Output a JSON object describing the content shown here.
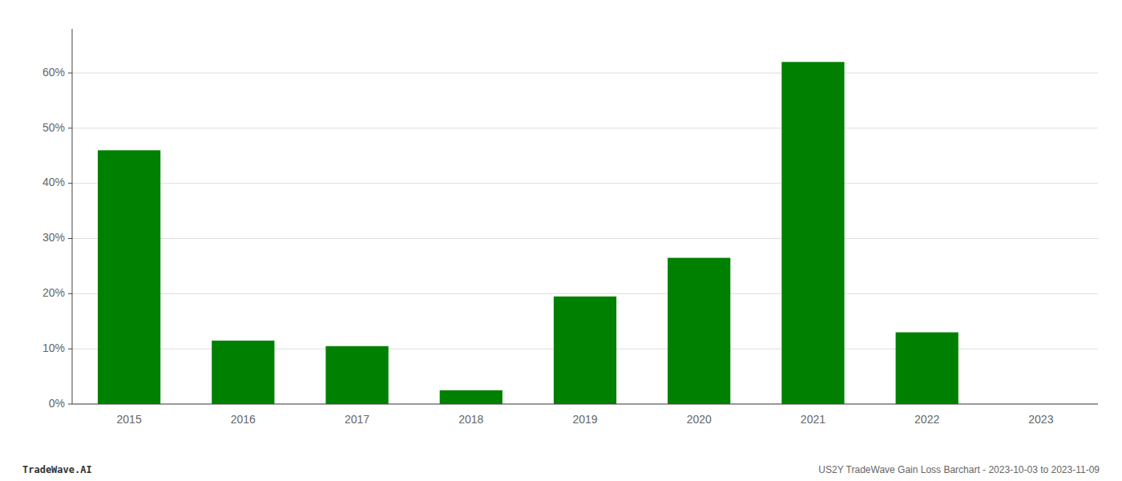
{
  "chart_data": {
    "type": "bar",
    "categories": [
      "2015",
      "2016",
      "2017",
      "2018",
      "2019",
      "2020",
      "2021",
      "2022",
      "2023"
    ],
    "values": [
      46.0,
      11.5,
      10.5,
      2.5,
      19.5,
      26.5,
      62.0,
      13.0,
      0.0
    ],
    "color": "#008000",
    "ylim": [
      0,
      68
    ],
    "yticks": [
      {
        "value": 0,
        "label": "0%"
      },
      {
        "value": 10,
        "label": "10%"
      },
      {
        "value": 20,
        "label": "20%"
      },
      {
        "value": 30,
        "label": "30%"
      },
      {
        "value": 40,
        "label": "40%"
      },
      {
        "value": 50,
        "label": "50%"
      },
      {
        "value": 60,
        "label": "60%"
      }
    ],
    "grid": true,
    "annotations": [
      "TradeWave.AI",
      "US2Y TradeWave Gain Loss Barchart - 2023-10-03 to 2023-11-09"
    ]
  }
}
